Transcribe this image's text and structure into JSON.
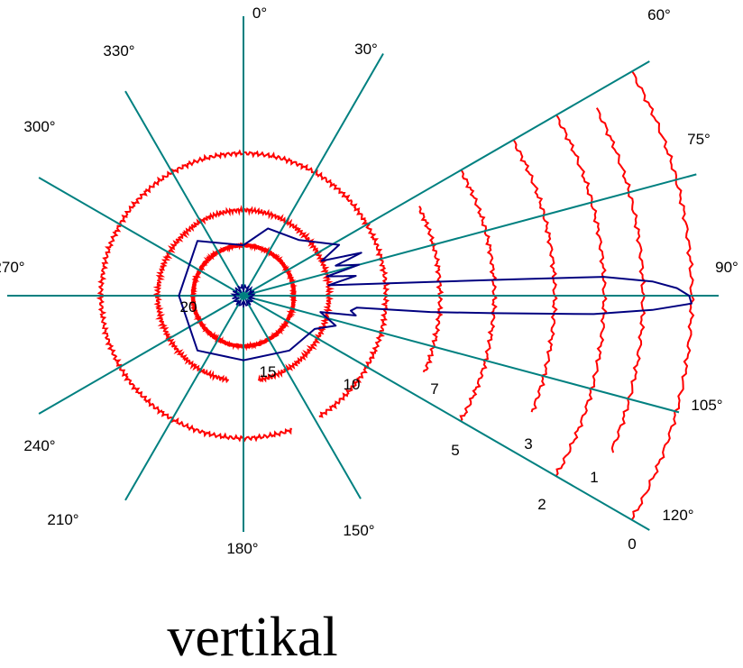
{
  "chart_data": {
    "type": "polar",
    "caption": "vertikal",
    "angle_ticks": [
      {
        "angle": 0,
        "label": "0°"
      },
      {
        "angle": 30,
        "label": "30°"
      },
      {
        "angle": 60,
        "label": "60°"
      },
      {
        "angle": 75,
        "label": "75°"
      },
      {
        "angle": 90,
        "label": "90°"
      },
      {
        "angle": 105,
        "label": "105°"
      },
      {
        "angle": 120,
        "label": "120°"
      },
      {
        "angle": 150,
        "label": "150°"
      },
      {
        "angle": 180,
        "label": "180°"
      },
      {
        "angle": 210,
        "label": "210°"
      },
      {
        "angle": 240,
        "label": "240°"
      },
      {
        "angle": 270,
        "label": "270°"
      },
      {
        "angle": 300,
        "label": "300°"
      },
      {
        "angle": 330,
        "label": "330°"
      }
    ],
    "rings": [
      {
        "label": "20",
        "kind": "full"
      },
      {
        "label": "15",
        "kind": "full"
      },
      {
        "label": "10",
        "kind": "full"
      },
      {
        "label": "7",
        "kind": "sector"
      },
      {
        "label": "5",
        "kind": "sector"
      },
      {
        "label": "3",
        "kind": "sector"
      },
      {
        "label": "2",
        "kind": "sector"
      },
      {
        "label": "1",
        "kind": "sector"
      },
      {
        "label": "0",
        "kind": "sector"
      }
    ],
    "sector_range_deg": [
      60,
      120
    ],
    "pattern_color": "#000080",
    "ring_color": "#ff0000",
    "spoke_color": "#008080",
    "pattern": [
      {
        "angle": 0,
        "value": 20
      },
      {
        "angle": 20,
        "value": 17
      },
      {
        "angle": 45,
        "value": 16
      },
      {
        "angle": 62,
        "value": 13
      },
      {
        "angle": 66,
        "value": 15
      },
      {
        "angle": 70,
        "value": 11.5
      },
      {
        "angle": 72,
        "value": 14
      },
      {
        "angle": 75,
        "value": 12
      },
      {
        "angle": 77,
        "value": 15
      },
      {
        "angle": 80,
        "value": 12.5
      },
      {
        "angle": 83,
        "value": 15
      },
      {
        "angle": 86.5,
        "value": 4.5
      },
      {
        "angle": 87,
        "value": 2
      },
      {
        "angle": 88,
        "value": 0.8
      },
      {
        "angle": 89,
        "value": 0.3
      },
      {
        "angle": 90,
        "value": 0.05
      },
      {
        "angle": 91,
        "value": 0
      },
      {
        "angle": 92,
        "value": 0.8
      },
      {
        "angle": 93,
        "value": 2.2
      },
      {
        "angle": 94,
        "value": 5
      },
      {
        "angle": 95,
        "value": 7.5
      },
      {
        "angle": 96,
        "value": 12.5
      },
      {
        "angle": 98,
        "value": 13
      },
      {
        "angle": 100,
        "value": 12.5
      },
      {
        "angle": 102,
        "value": 16
      },
      {
        "angle": 108,
        "value": 14
      },
      {
        "angle": 115,
        "value": 16
      },
      {
        "angle": 140,
        "value": 17
      },
      {
        "angle": 180,
        "value": 18
      },
      {
        "angle": 220,
        "value": 17
      },
      {
        "angle": 270,
        "value": 18
      },
      {
        "angle": 320,
        "value": 17
      },
      {
        "angle": 360,
        "value": 20
      }
    ]
  }
}
